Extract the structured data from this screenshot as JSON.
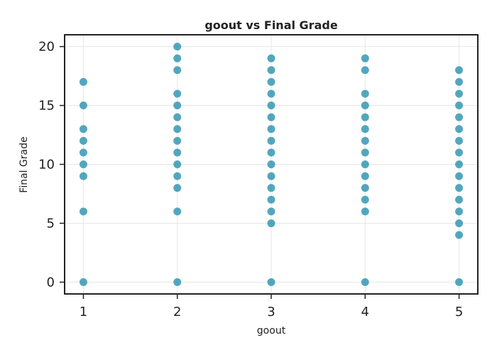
{
  "chart_data": {
    "type": "scatter",
    "title": "goout vs Final Grade",
    "xlabel": "goout",
    "ylabel": "Final Grade",
    "xlim": [
      0.8,
      5.2
    ],
    "ylim": [
      -1,
      21
    ],
    "xticks": [
      1,
      2,
      3,
      4,
      5
    ],
    "yticks": [
      0,
      5,
      10,
      15,
      20
    ],
    "grid": true,
    "point_color": "#1a8aa8",
    "points": [
      {
        "x": 1,
        "y": 0
      },
      {
        "x": 1,
        "y": 6
      },
      {
        "x": 1,
        "y": 9
      },
      {
        "x": 1,
        "y": 10
      },
      {
        "x": 1,
        "y": 11
      },
      {
        "x": 1,
        "y": 12
      },
      {
        "x": 1,
        "y": 13
      },
      {
        "x": 1,
        "y": 15
      },
      {
        "x": 1,
        "y": 17
      },
      {
        "x": 2,
        "y": 0
      },
      {
        "x": 2,
        "y": 6
      },
      {
        "x": 2,
        "y": 8
      },
      {
        "x": 2,
        "y": 9
      },
      {
        "x": 2,
        "y": 10
      },
      {
        "x": 2,
        "y": 11
      },
      {
        "x": 2,
        "y": 12
      },
      {
        "x": 2,
        "y": 13
      },
      {
        "x": 2,
        "y": 14
      },
      {
        "x": 2,
        "y": 15
      },
      {
        "x": 2,
        "y": 16
      },
      {
        "x": 2,
        "y": 18
      },
      {
        "x": 2,
        "y": 19
      },
      {
        "x": 2,
        "y": 20
      },
      {
        "x": 3,
        "y": 0
      },
      {
        "x": 3,
        "y": 5
      },
      {
        "x": 3,
        "y": 6
      },
      {
        "x": 3,
        "y": 7
      },
      {
        "x": 3,
        "y": 8
      },
      {
        "x": 3,
        "y": 9
      },
      {
        "x": 3,
        "y": 10
      },
      {
        "x": 3,
        "y": 11
      },
      {
        "x": 3,
        "y": 12
      },
      {
        "x": 3,
        "y": 13
      },
      {
        "x": 3,
        "y": 14
      },
      {
        "x": 3,
        "y": 15
      },
      {
        "x": 3,
        "y": 16
      },
      {
        "x": 3,
        "y": 17
      },
      {
        "x": 3,
        "y": 18
      },
      {
        "x": 3,
        "y": 19
      },
      {
        "x": 4,
        "y": 0
      },
      {
        "x": 4,
        "y": 6
      },
      {
        "x": 4,
        "y": 7
      },
      {
        "x": 4,
        "y": 8
      },
      {
        "x": 4,
        "y": 9
      },
      {
        "x": 4,
        "y": 10
      },
      {
        "x": 4,
        "y": 11
      },
      {
        "x": 4,
        "y": 12
      },
      {
        "x": 4,
        "y": 13
      },
      {
        "x": 4,
        "y": 14
      },
      {
        "x": 4,
        "y": 15
      },
      {
        "x": 4,
        "y": 16
      },
      {
        "x": 4,
        "y": 18
      },
      {
        "x": 4,
        "y": 19
      },
      {
        "x": 5,
        "y": 0
      },
      {
        "x": 5,
        "y": 4
      },
      {
        "x": 5,
        "y": 5
      },
      {
        "x": 5,
        "y": 6
      },
      {
        "x": 5,
        "y": 7
      },
      {
        "x": 5,
        "y": 8
      },
      {
        "x": 5,
        "y": 9
      },
      {
        "x": 5,
        "y": 10
      },
      {
        "x": 5,
        "y": 11
      },
      {
        "x": 5,
        "y": 12
      },
      {
        "x": 5,
        "y": 13
      },
      {
        "x": 5,
        "y": 14
      },
      {
        "x": 5,
        "y": 15
      },
      {
        "x": 5,
        "y": 16
      },
      {
        "x": 5,
        "y": 17
      },
      {
        "x": 5,
        "y": 18
      }
    ]
  }
}
